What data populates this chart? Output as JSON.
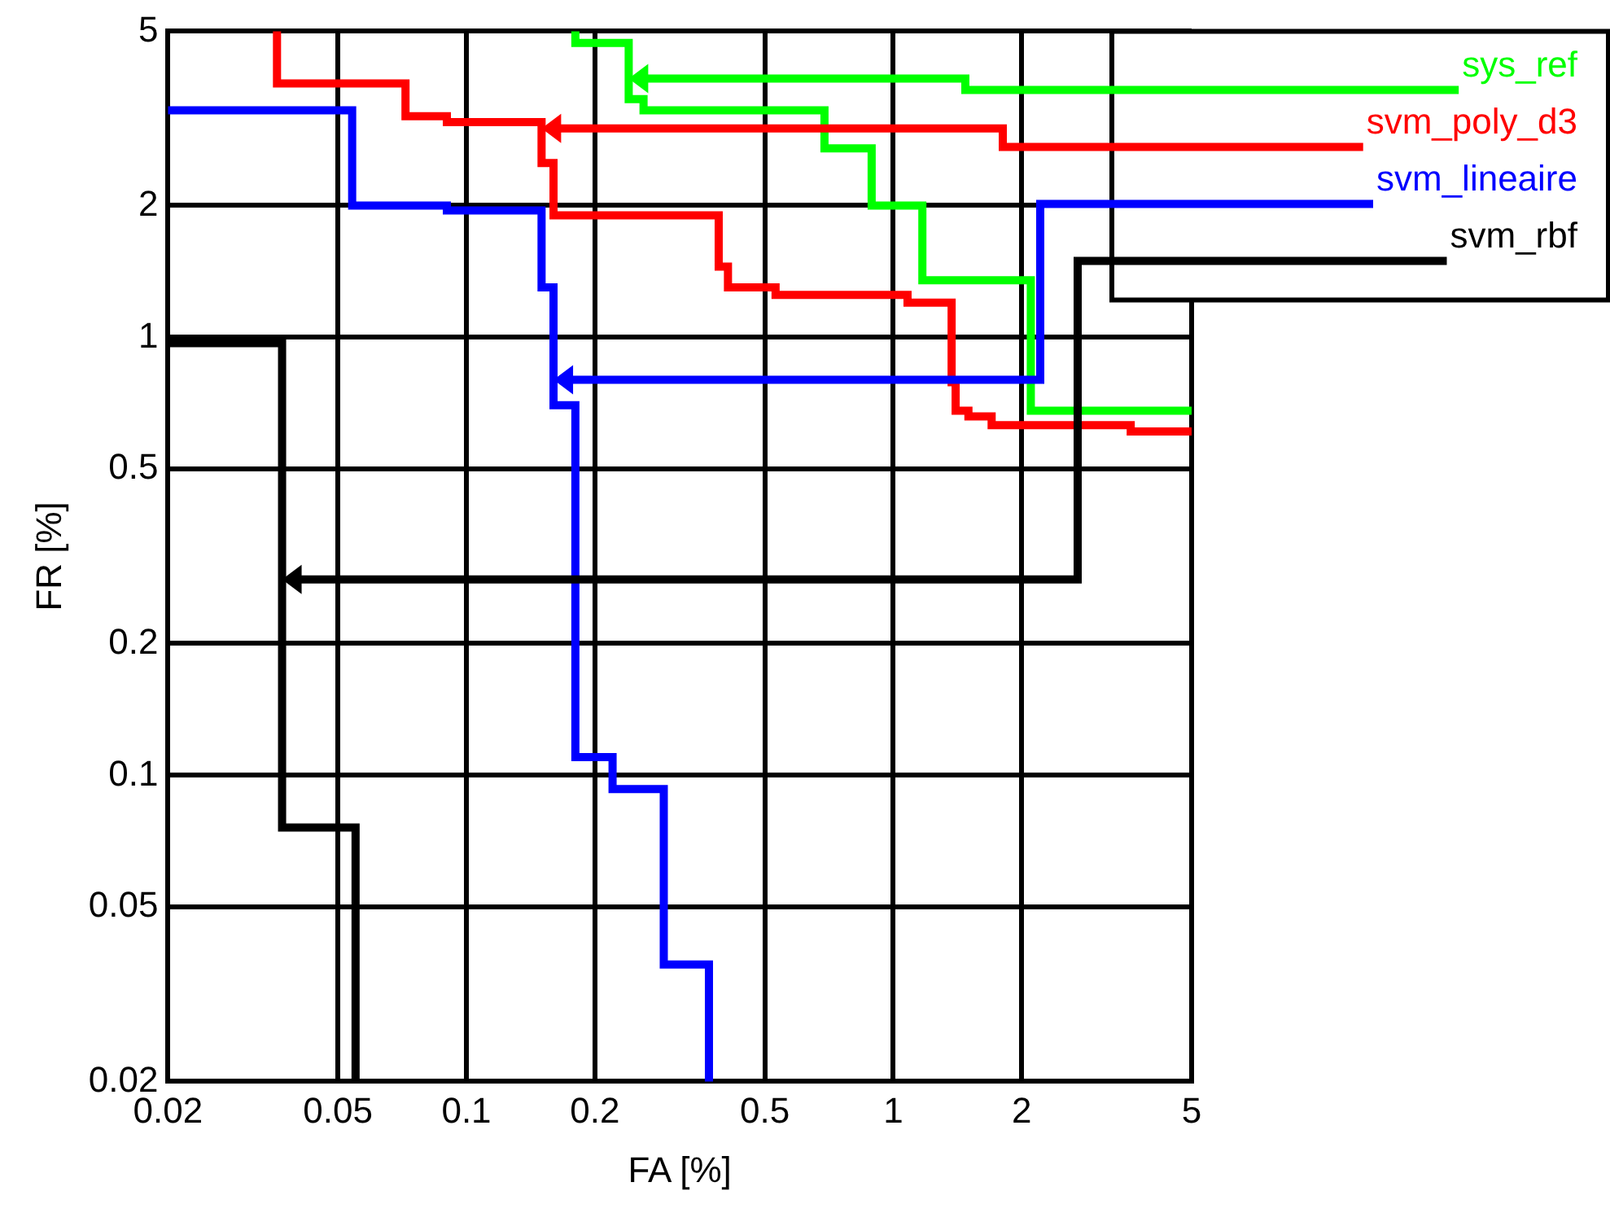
{
  "chart_data": {
    "type": "step",
    "xlabel": "FA [%]",
    "ylabel": "FR [%]",
    "xlim": [
      0.02,
      5
    ],
    "ylim": [
      0.02,
      5
    ],
    "xticks": [
      0.02,
      0.05,
      0.1,
      0.2,
      0.5,
      1,
      2,
      5
    ],
    "yticks": [
      0.02,
      0.05,
      0.1,
      0.2,
      0.5,
      1,
      2,
      5
    ],
    "grid": true,
    "legend": false,
    "log": "xy",
    "series": [
      {
        "color": "#00ff00",
        "x": [
          0.18,
          0.24,
          0.24,
          0.26,
          0.69,
          0.89,
          1.17,
          2.1,
          5
        ],
        "values": [
          5,
          4.7,
          3.9,
          3.5,
          3.3,
          2.7,
          2.0,
          1.35,
          0.68
        ]
      },
      {
        "color": "#ff0000",
        "x": [
          0.036,
          0.072,
          0.09,
          0.15,
          0.15,
          0.16,
          0.18,
          0.39,
          0.41,
          0.53,
          1.08,
          1.37,
          1.4,
          1.5,
          1.7,
          3.6,
          5
        ],
        "values": [
          5,
          3.8,
          3.2,
          3.1,
          3.0,
          2.5,
          1.9,
          1.9,
          1.45,
          1.3,
          1.25,
          1.2,
          0.79,
          0.68,
          0.66,
          0.63,
          0.61
        ]
      },
      {
        "color": "#0000ff",
        "x": [
          0.02,
          0.054,
          0.09,
          0.15,
          0.16,
          0.16,
          0.18,
          0.22,
          0.29,
          0.37,
          0.37
        ],
        "values": [
          3.3,
          3.3,
          2.0,
          1.95,
          1.3,
          0.8,
          0.7,
          0.11,
          0.093,
          0.037,
          0.02
        ]
      },
      {
        "color": "#000000",
        "x": [
          0.02,
          0.037,
          0.037,
          0.055,
          0.055
        ],
        "values": [
          0.97,
          0.97,
          0.28,
          0.076,
          0.02
        ]
      }
    ],
    "annotations": [
      {
        "text": "sys_ref",
        "x": 0.24,
        "y": 3.9
      },
      {
        "text": "svm_poly_d3",
        "x": 0.15,
        "y": 3.0
      },
      {
        "text": "svm_lineaire",
        "x": 0.16,
        "y": 0.8
      },
      {
        "text": "svm_rbf",
        "x": 0.037,
        "y": 0.28
      }
    ]
  }
}
